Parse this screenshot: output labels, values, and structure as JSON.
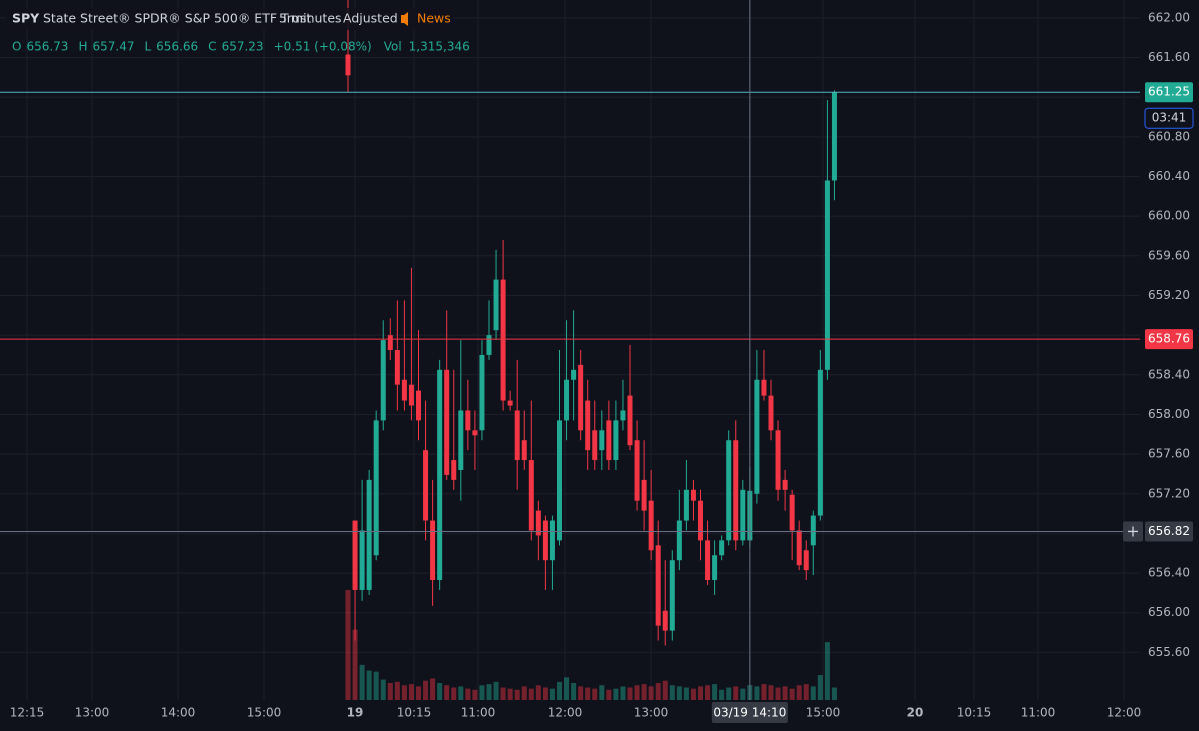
{
  "chart_data": {
    "type": "candlestick",
    "symbol": "SPY",
    "description": "State Street® SPDR® S&P 500® ETF Trust",
    "interval": "5 minutes",
    "adjustment": "Adjusted",
    "news": "News",
    "ohlc_legend": {
      "labels": [
        "O",
        "H",
        "L",
        "C"
      ],
      "values": [
        656.73,
        657.47,
        656.66,
        657.23
      ],
      "change": "+0.51 (+0.08%)",
      "vol_label": "Vol",
      "volume": "1,315,346"
    },
    "up_color": "#22ab94",
    "down_color": "#f23645",
    "open": [
      661.63,
      656.93,
      656.23,
      656.23,
      656.58,
      657.94,
      658.8,
      658.65,
      658.35,
      658.3,
      658.24,
      657.64,
      656.93,
      656.33,
      658.45,
      657.54,
      657.44,
      658.04,
      657.84,
      657.84,
      658.6,
      658.85,
      659.36,
      658.14,
      658.04,
      657.74,
      657.54,
      657.03,
      656.93,
      656.53,
      656.73,
      657.94,
      658.35,
      658.5,
      658.14,
      657.84,
      657.64,
      657.94,
      657.54,
      657.94,
      658.19,
      657.74,
      657.34,
      657.13,
      656.68,
      656.02,
      655.82,
      656.53,
      656.93,
      657.24,
      657.13,
      656.73,
      656.33,
      656.58,
      656.73,
      657.74,
      656.73,
      656.73,
      657.2,
      658.35,
      658.19,
      657.84,
      657.34,
      657.19,
      656.83,
      656.63,
      656.68,
      656.98,
      658.45,
      660.36
    ],
    "high": [
      662.3,
      656.93,
      657.34,
      657.44,
      658.04,
      658.95,
      658.97,
      659.15,
      659.15,
      659.48,
      658.85,
      658.14,
      657.34,
      658.55,
      659.05,
      658.45,
      658.75,
      658.35,
      658.04,
      658.75,
      659.15,
      659.66,
      659.76,
      658.24,
      658.55,
      658.04,
      658.14,
      657.13,
      656.98,
      656.98,
      658.65,
      658.95,
      659.05,
      658.65,
      658.35,
      658.14,
      658.04,
      658.14,
      658.14,
      658.35,
      658.7,
      657.94,
      657.74,
      657.44,
      656.93,
      656.53,
      656.63,
      657.24,
      657.54,
      657.34,
      657.24,
      656.93,
      656.73,
      656.78,
      657.84,
      657.94,
      657.34,
      657.47,
      658.65,
      658.65,
      658.35,
      657.94,
      657.44,
      657.24,
      656.93,
      656.73,
      657.03,
      658.65,
      661.17,
      661.27
    ],
    "low": [
      661.25,
      655.72,
      656.12,
      656.18,
      656.53,
      657.84,
      658.55,
      658.04,
      658.04,
      657.94,
      657.74,
      656.73,
      656.07,
      656.23,
      657.34,
      657.24,
      657.13,
      657.64,
      657.44,
      657.74,
      658.55,
      658.75,
      658.04,
      658.04,
      657.24,
      657.44,
      656.73,
      656.53,
      656.23,
      656.23,
      656.68,
      657.74,
      657.94,
      657.74,
      657.44,
      657.44,
      657.44,
      657.44,
      657.44,
      657.84,
      657.64,
      657.03,
      656.83,
      656.53,
      655.72,
      655.67,
      655.72,
      656.43,
      656.83,
      656.93,
      656.53,
      656.28,
      656.18,
      656.53,
      656.68,
      656.63,
      656.68,
      656.66,
      657.1,
      658.14,
      657.74,
      657.13,
      657.03,
      656.53,
      656.43,
      656.33,
      656.38,
      656.93,
      658.35,
      660.16
    ],
    "close": [
      661.42,
      656.23,
      656.83,
      657.34,
      657.94,
      658.75,
      658.65,
      658.3,
      658.14,
      658.09,
      657.94,
      656.93,
      656.33,
      658.45,
      657.39,
      657.34,
      658.04,
      657.84,
      657.79,
      658.6,
      658.8,
      659.36,
      658.14,
      658.09,
      657.54,
      657.54,
      656.83,
      656.78,
      656.53,
      656.93,
      657.94,
      658.35,
      658.45,
      657.84,
      657.64,
      657.54,
      657.84,
      657.54,
      657.94,
      658.04,
      657.69,
      657.13,
      657.03,
      656.63,
      655.87,
      655.82,
      656.53,
      656.93,
      657.24,
      657.13,
      656.73,
      656.33,
      656.58,
      656.73,
      657.74,
      656.73,
      657.24,
      657.23,
      658.35,
      658.19,
      657.84,
      657.24,
      657.24,
      656.83,
      656.48,
      656.43,
      656.98,
      658.45,
      660.36,
      661.25
    ],
    "volume": [
      9700000,
      6200000,
      3100000,
      2600000,
      2500000,
      1800000,
      1500000,
      1600000,
      1300000,
      1400000,
      1200000,
      1700000,
      1900000,
      1500000,
      1300000,
      1100000,
      1200000,
      1000000,
      900000,
      1300000,
      1400000,
      1600000,
      1100000,
      1000000,
      900000,
      1200000,
      1000000,
      1300000,
      1100000,
      1000000,
      1600000,
      2000000,
      1500000,
      1200000,
      1100000,
      1000000,
      1300000,
      900000,
      1000000,
      1200000,
      1100000,
      1300000,
      1400000,
      1200000,
      1500000,
      1700000,
      1300000,
      1200000,
      1100000,
      1000000,
      1200000,
      1300000,
      1400000,
      900000,
      1100000,
      1200000,
      1000000,
      1315346,
      1200000,
      1400000,
      1300000,
      1100000,
      1200000,
      1000000,
      1300000,
      1400000,
      1200000,
      2200000,
      5100000,
      1100000
    ],
    "ylim": [
      655.12,
      662.18
    ],
    "yticks": [
      {
        "value": 655.6,
        "label": "655.60"
      },
      {
        "value": 656,
        "label": "656.00"
      },
      {
        "value": 656.4,
        "label": "656.40"
      },
      {
        "value": 656.8,
        "label": "656.80"
      },
      {
        "value": 657.2,
        "label": "657.20"
      },
      {
        "value": 657.6,
        "label": "657.60"
      },
      {
        "value": 658,
        "label": "658.00"
      },
      {
        "value": 658.4,
        "label": "658.40"
      },
      {
        "value": 658.8,
        "label": "658.80"
      },
      {
        "value": 659.2,
        "label": "659.20"
      },
      {
        "value": 659.6,
        "label": "659.60"
      },
      {
        "value": 660,
        "label": "660.00"
      },
      {
        "value": 660.4,
        "label": "660.40"
      },
      {
        "value": 660.8,
        "label": "660.80"
      },
      {
        "value": 661.2,
        "label": "661.20"
      },
      {
        "value": 661.6,
        "label": "661.60"
      },
      {
        "value": 662,
        "label": "662.00"
      }
    ],
    "xtick_labels": [
      "12:15",
      "13:00",
      "14:00",
      "15:00",
      "19",
      "10:15",
      "11:00",
      "12:00",
      "13:00",
      "15:00",
      "20",
      "10:15",
      "11:00",
      "12:00"
    ],
    "last_price": 661.25,
    "countdown": "03:41",
    "alert_line": 658.76,
    "crosshair_price": 656.82,
    "crosshair_time": "03/19 14:10",
    "grid": true
  }
}
